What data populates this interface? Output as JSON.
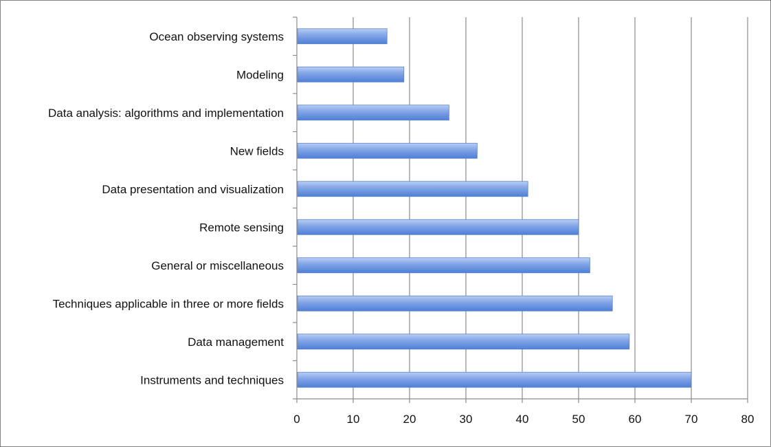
{
  "chart_data": {
    "type": "bar",
    "orientation": "horizontal",
    "categories": [
      "Ocean observing systems",
      "Modeling",
      "Data analysis: algorithms and implementation",
      "New fields",
      "Data presentation and visualization",
      "Remote sensing",
      "General or miscellaneous",
      "Techniques applicable in three or more fields",
      "Data management",
      "Instruments and techniques"
    ],
    "values": [
      16,
      19,
      27,
      32,
      41,
      50,
      52,
      56,
      59,
      70
    ],
    "xlim": [
      0,
      80
    ],
    "xticks": [
      0,
      10,
      20,
      30,
      40,
      50,
      60,
      70,
      80
    ],
    "title": "",
    "xlabel": "",
    "ylabel": "",
    "grid": "vertical",
    "legend": "none",
    "colors": {
      "bar_light": "#b8cdf5",
      "bar_mid": "#7fa3e6",
      "bar_dark": "#4f7fd6",
      "bar_stroke": "#5a82c8",
      "grid": "#8a8a8a",
      "axis": "#8a8a8a",
      "text": "#111111"
    }
  }
}
